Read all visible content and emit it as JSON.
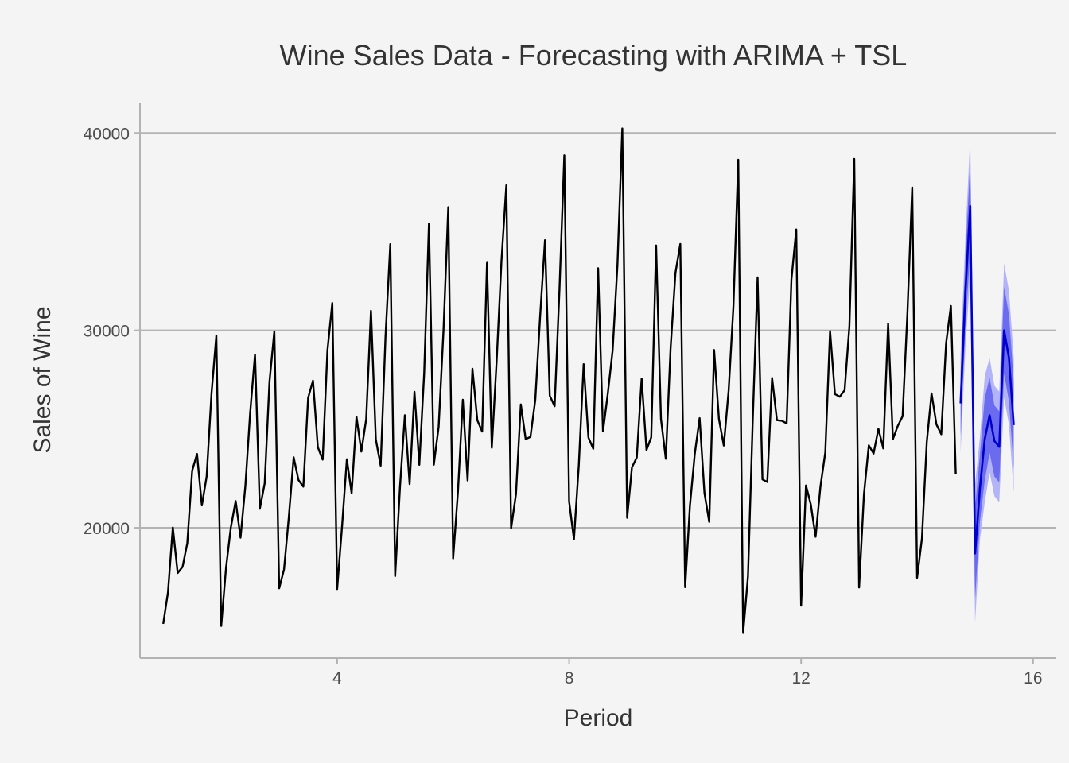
{
  "chart_data": {
    "type": "line",
    "title": "Wine Sales Data - Forecasting with ARIMA + TSL",
    "xlabel": "Period",
    "ylabel": "Sales of Wine",
    "xlim": [
      0.6,
      16.4
    ],
    "ylim": [
      13400,
      41500
    ],
    "x_ticks": [
      4,
      8,
      12,
      16
    ],
    "y_ticks": [
      20000,
      30000,
      40000
    ],
    "grid": "horizontal major gridlines only",
    "legend": "none",
    "colors": {
      "history": "#000000",
      "forecast": "#0000cc",
      "band_95": "#b3b3f8",
      "band_80": "#6b6bef",
      "grid": "#b3b3b3",
      "axis": "#b3b3b3",
      "background": "#f4f4f4"
    },
    "series": [
      {
        "kind": "history",
        "start": 1,
        "step": 0.08333333,
        "values": [
          15136,
          16733,
          20016,
          17708,
          18019,
          19227,
          22893,
          23739,
          21133,
          22591,
          26786,
          29740,
          15028,
          17977,
          20008,
          21354,
          19498,
          22125,
          25817,
          28779,
          20960,
          22254,
          27392,
          29945,
          16933,
          17892,
          20533,
          23569,
          22417,
          22084,
          26580,
          27454,
          24081,
          23451,
          28991,
          31386,
          16896,
          20045,
          23471,
          21747,
          25621,
          23859,
          25500,
          30998,
          24475,
          23145,
          29701,
          34365,
          17556,
          22077,
          25702,
          22214,
          26886,
          23191,
          27831,
          35406,
          23195,
          25110,
          30009,
          36242,
          18450,
          21845,
          26488,
          22394,
          28057,
          25451,
          24872,
          33424,
          24052,
          28449,
          33533,
          37351,
          19969,
          21701,
          26249,
          24493,
          24603,
          26485,
          30723,
          34569,
          26689,
          26157,
          32064,
          38870,
          21337,
          19419,
          23166,
          28286,
          24570,
          24001,
          33151,
          24878,
          26804,
          28967,
          33311,
          40226,
          20504,
          23060,
          23562,
          27562,
          23940,
          24584,
          34303,
          25517,
          23494,
          29095,
          32903,
          34379,
          16991,
          21109,
          23740,
          25552,
          21752,
          20294,
          29009,
          25500,
          24166,
          26960,
          31222,
          38641,
          14672,
          17543,
          25453,
          32683,
          22449,
          22316,
          27595,
          25451,
          25421,
          25288,
          32568,
          35110,
          16052,
          22146,
          21198,
          19543,
          22084,
          23816,
          29961,
          26773,
          26635,
          26972,
          30207,
          38687,
          16974,
          21697,
          24179,
          23757,
          25013,
          24019,
          30345,
          24488,
          25156,
          25650,
          30923,
          37240,
          17466,
          19463,
          24352,
          26805,
          25236,
          24735,
          29356,
          31234,
          22724
        ]
      },
      {
        "kind": "forecast",
        "start": 14.75,
        "step": 0.08333333,
        "values": [
          26300,
          32000,
          36300,
          18700,
          22000,
          24500,
          25700,
          24400,
          24100,
          30000,
          28600,
          25200
        ],
        "lo80": [
          24700,
          30200,
          34000,
          16400,
          20300,
          22400,
          23800,
          22600,
          22300,
          27800,
          26400,
          23000
        ],
        "hi80": [
          27900,
          33800,
          38600,
          21000,
          23700,
          26600,
          27600,
          26200,
          25900,
          32200,
          30800,
          27400
        ],
        "lo95": [
          23800,
          29200,
          32800,
          15200,
          19400,
          21300,
          22800,
          21600,
          21300,
          26600,
          25200,
          21800
        ],
        "hi95": [
          28800,
          34800,
          39800,
          22200,
          24600,
          27700,
          28600,
          27200,
          26900,
          33400,
          32000,
          28600
        ]
      }
    ]
  }
}
